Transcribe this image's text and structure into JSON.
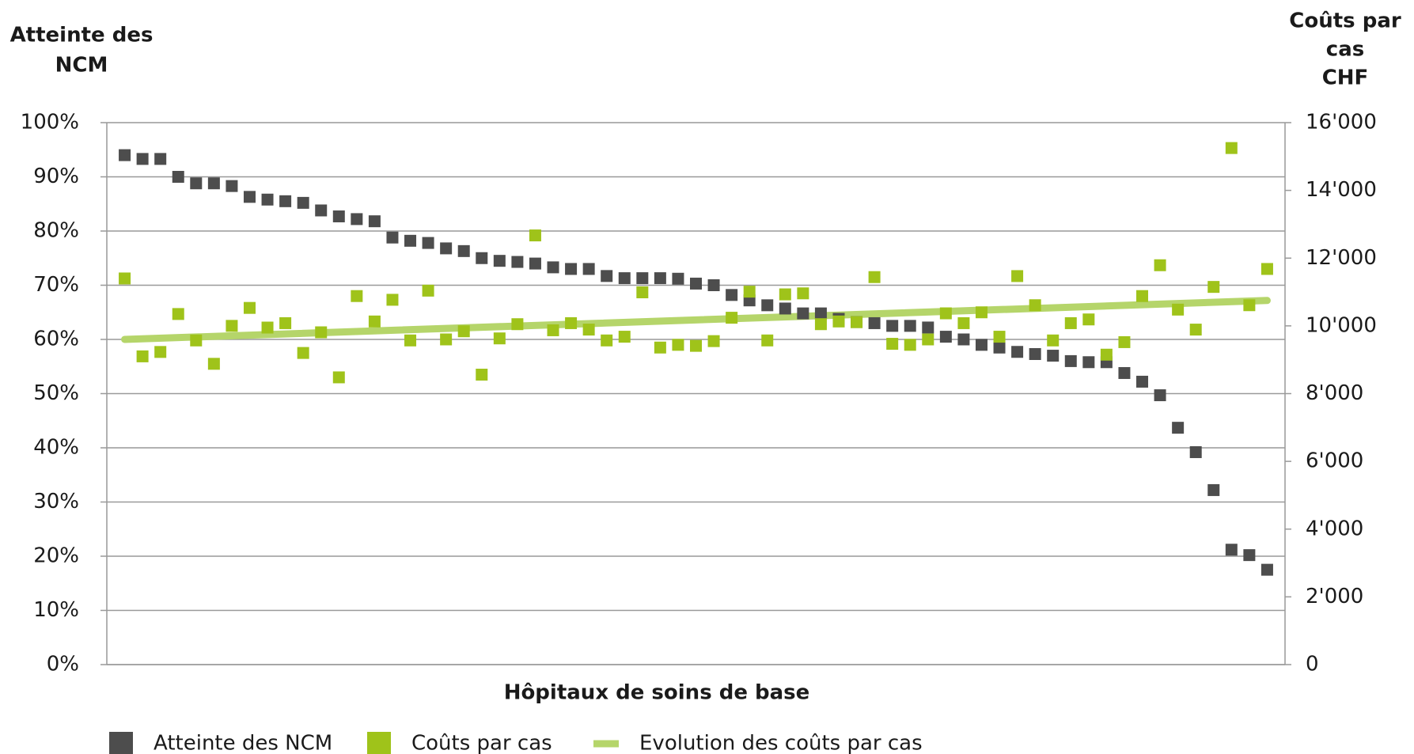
{
  "chart_data": {
    "type": "scatter",
    "ylabel": [
      "Atteinte des",
      "NCM"
    ],
    "y2label": [
      "Coûts par",
      "cas",
      "CHF"
    ],
    "xlabel": "Hôpitaux de soins de base",
    "ylim": [
      0,
      100
    ],
    "yticks": [
      {
        "value": 0,
        "label": "0%"
      },
      {
        "value": 10,
        "label": "10%"
      },
      {
        "value": 20,
        "label": "20%"
      },
      {
        "value": 30,
        "label": "30%"
      },
      {
        "value": 40,
        "label": "40%"
      },
      {
        "value": 50,
        "label": "50%"
      },
      {
        "value": 60,
        "label": "60%"
      },
      {
        "value": 70,
        "label": "70%"
      },
      {
        "value": 80,
        "label": "80%"
      },
      {
        "value": 90,
        "label": "90%"
      },
      {
        "value": 100,
        "label": "100%"
      }
    ],
    "y2lim": [
      0,
      16000
    ],
    "y2ticks": [
      0,
      {
        "value": 2000,
        "label": "2'000"
      },
      {
        "value": 4000,
        "label": "4'000"
      },
      {
        "value": 6000,
        "label": "6'000"
      },
      {
        "value": 8000,
        "label": "8'000"
      },
      {
        "value": 10000,
        "label": "10'000"
      },
      {
        "value": 12000,
        "label": "12'000"
      },
      {
        "value": 14000,
        "label": "14'000"
      },
      {
        "value": 16000,
        "label": "16'000"
      }
    ],
    "grid": true,
    "legend": "bottom",
    "series": [
      {
        "name": "Atteinte des NCM",
        "color": "#4d4d4d",
        "mark": "square",
        "values": [
          94,
          93.3,
          93.3,
          90,
          88.8,
          88.8,
          88.3,
          86.3,
          85.8,
          85.5,
          85.2,
          83.8,
          82.7,
          82.2,
          81.8,
          78.8,
          78.2,
          77.8,
          76.8,
          76.3,
          75,
          74.5,
          74.3,
          74,
          73.3,
          73,
          73,
          71.7,
          71.3,
          71.3,
          71.3,
          71.2,
          70.3,
          70,
          68.2,
          67.2,
          66.3,
          65.7,
          64.8,
          64.8,
          63.8,
          63.2,
          63,
          62.5,
          62.5,
          62.2,
          60.5,
          60,
          59,
          58.5,
          57.7,
          57.3,
          57,
          56,
          55.8,
          55.8,
          53.8,
          52.2,
          49.7,
          43.7,
          39.2,
          32.2,
          21.2,
          20.2,
          17.5
        ]
      },
      {
        "name": "Coûts par cas",
        "color": "#9fc31a",
        "mark": "square",
        "axis": "y2",
        "values": [
          11400,
          9100,
          9230,
          10350,
          9570,
          8880,
          10000,
          10530,
          9950,
          10080,
          9200,
          9810,
          8480,
          10880,
          10130,
          10770,
          9570,
          11040,
          9600,
          9840,
          8560,
          9630,
          10050,
          12670,
          9870,
          10080,
          9890,
          9570,
          9680,
          10990,
          9360,
          9440,
          9410,
          9550,
          10240,
          11010,
          9570,
          10930,
          10960,
          10050,
          10130,
          10110,
          11440,
          9470,
          9440,
          9600,
          10370,
          10080,
          10400,
          9680,
          11470,
          10610,
          9570,
          10080,
          10190,
          9150,
          9520,
          10880,
          11790,
          10480,
          9890,
          11150,
          15250,
          10610,
          11680
        ]
      },
      {
        "name": "Evolution des coûts par cas",
        "color": "#b5d56a",
        "mark": "line",
        "axis": "y2",
        "values": [
          9600,
          10750
        ]
      }
    ]
  }
}
